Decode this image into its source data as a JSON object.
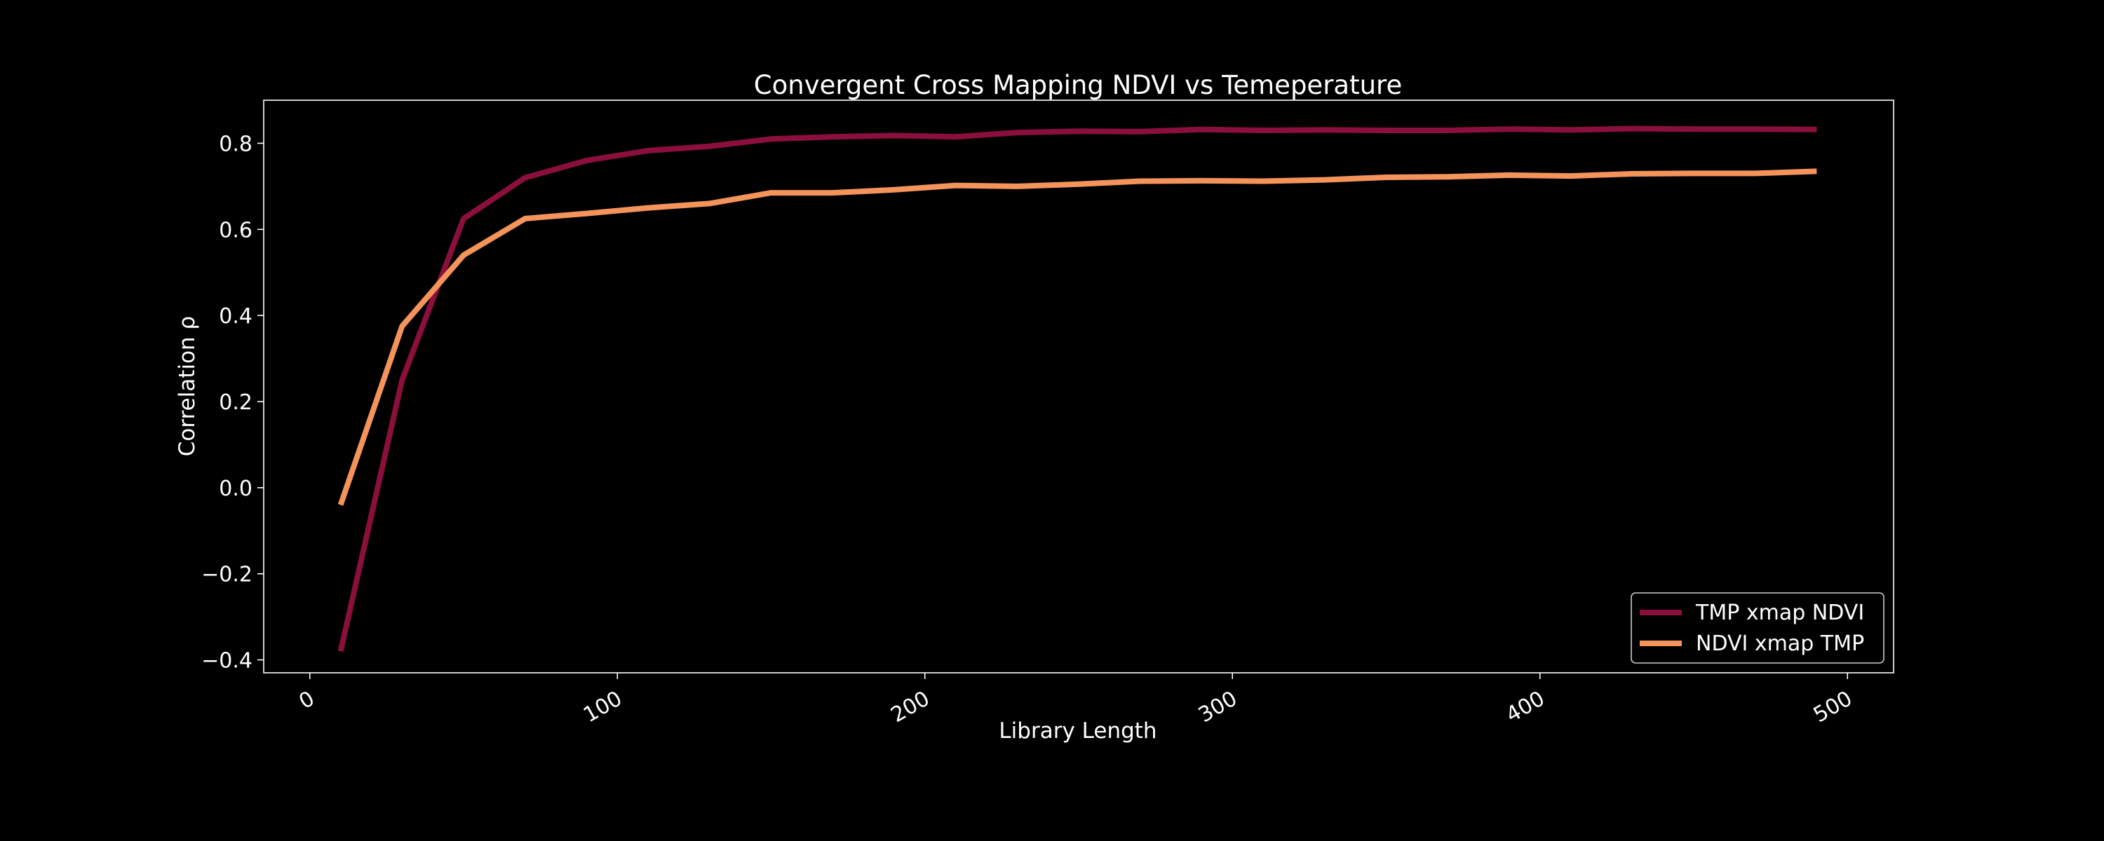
{
  "chart_data": {
    "type": "line",
    "title": "Convergent Cross Mapping NDVI vs Temeperature",
    "xlabel": "Library Length",
    "ylabel": "Correlation ρ",
    "xlim": [
      -15,
      515
    ],
    "ylim": [
      -0.43,
      0.9
    ],
    "xticks": [
      0,
      100,
      200,
      300,
      400,
      500
    ],
    "yticks": [
      -0.4,
      -0.2,
      0.0,
      0.2,
      0.4,
      0.6,
      0.8
    ],
    "ytick_labels": [
      "−0.4",
      "−0.2",
      "0.0",
      "0.2",
      "0.4",
      "0.6",
      "0.8"
    ],
    "grid": false,
    "legend_position": "lower-right",
    "x": [
      10,
      30,
      50,
      70,
      90,
      110,
      130,
      150,
      170,
      190,
      210,
      230,
      250,
      270,
      290,
      310,
      330,
      350,
      370,
      390,
      410,
      430,
      450,
      470,
      490
    ],
    "series": [
      {
        "name": "TMP xmap NDVI",
        "color": "#8a0f3c",
        "values": [
          -0.38,
          0.25,
          0.625,
          0.72,
          0.76,
          0.783,
          0.793,
          0.81,
          0.815,
          0.818,
          0.815,
          0.825,
          0.828,
          0.827,
          0.832,
          0.83,
          0.831,
          0.83,
          0.83,
          0.833,
          0.831,
          0.834,
          0.833,
          0.833,
          0.832
        ]
      },
      {
        "name": "NDVI xmap TMP",
        "color": "#f4935a",
        "values": [
          -0.04,
          0.375,
          0.54,
          0.625,
          0.637,
          0.65,
          0.66,
          0.685,
          0.685,
          0.692,
          0.702,
          0.7,
          0.705,
          0.712,
          0.713,
          0.712,
          0.715,
          0.721,
          0.722,
          0.726,
          0.724,
          0.729,
          0.73,
          0.73,
          0.735
        ]
      }
    ]
  }
}
